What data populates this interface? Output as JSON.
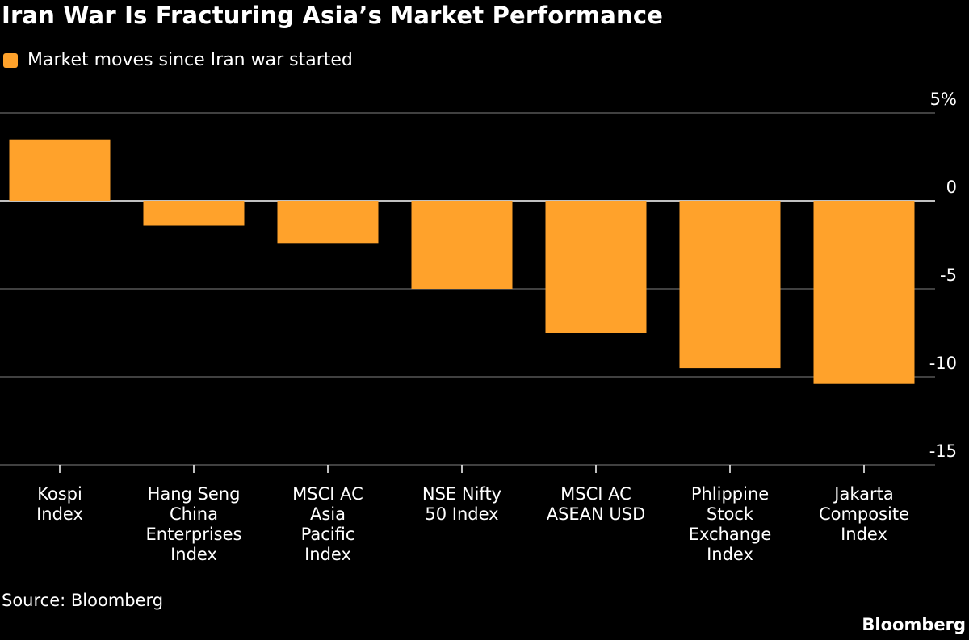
{
  "chart_data": {
    "type": "bar",
    "title": "Iran War Is Fracturing Asia’s Market Performance",
    "legend": [
      {
        "label": "Market moves since Iran war started",
        "color": "#FFA22B"
      }
    ],
    "legend_placement": "top-left",
    "categories": [
      [
        "Kospi",
        "Index"
      ],
      [
        "Hang Seng",
        "China",
        "Enterprises",
        "Index"
      ],
      [
        "MSCI AC",
        "Asia",
        "Pacific",
        "Index"
      ],
      [
        "NSE Nifty",
        "50 Index"
      ],
      [
        "MSCI AC",
        "ASEAN USD"
      ],
      [
        "Phlippine",
        "Stock",
        "Exchange",
        "Index"
      ],
      [
        "Jakarta",
        "Composite",
        "Index"
      ]
    ],
    "series": [
      {
        "values": [
          3.5,
          -1.4,
          -2.4,
          -5.0,
          -7.5,
          -9.5,
          -10.4
        ]
      }
    ],
    "yticks": [
      5,
      0,
      -5,
      -10,
      -15
    ],
    "ytick_labels": [
      "5%",
      "0",
      "-5",
      "-10",
      "-15"
    ],
    "ylim": [
      -15,
      5
    ],
    "yaxis_position": "right",
    "grid": true,
    "bar_color": "#FFA22B",
    "source": "Source: Bloomberg",
    "brand": "Bloomberg"
  }
}
